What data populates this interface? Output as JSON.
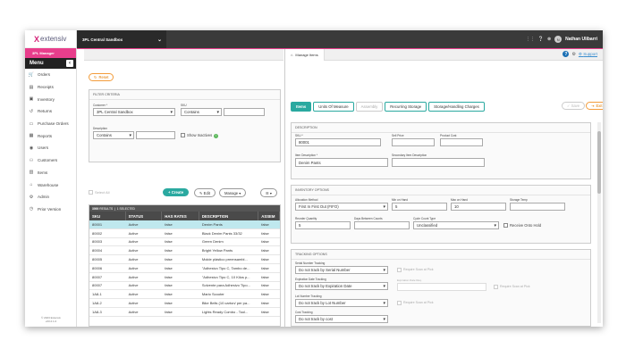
{
  "app": {
    "logo_text": "extensiv",
    "logo_mark": "X",
    "role": "3PL Manager",
    "env": "3PL Central Sandbox",
    "user": "Nathan Ulibarri",
    "user_initials": "N",
    "support": "Support"
  },
  "colors": {
    "accent": "#e83e8c",
    "teal": "#2aa9a0",
    "orange": "#f39c3a"
  },
  "menu": {
    "title": "Menu",
    "items": [
      {
        "label": "Orders",
        "icon": "cart-icon"
      },
      {
        "label": "Receipts",
        "icon": "receipt-icon"
      },
      {
        "label": "Inventory",
        "icon": "box-icon"
      },
      {
        "label": "Returns",
        "icon": "return-icon"
      },
      {
        "label": "Purchase Orders",
        "icon": "doc-icon"
      },
      {
        "label": "Reports",
        "icon": "report-icon"
      },
      {
        "label": "Users",
        "icon": "user-icon"
      },
      {
        "label": "Customers",
        "icon": "customers-icon"
      },
      {
        "label": "Items",
        "icon": "items-icon"
      },
      {
        "label": "Warehouse",
        "icon": "warehouse-icon"
      },
      {
        "label": "Admin",
        "icon": "admin-icon"
      },
      {
        "label": "Prior Version",
        "icon": "history-icon"
      }
    ],
    "copyright_1": "© 2023 Extensiv",
    "copyright_2": "v23.2.1.0"
  },
  "tab": {
    "label": "Manage Items"
  },
  "left": {
    "reset": "Reset",
    "filter_title": "FILTER CRITERIA",
    "customer_label": "Customer *",
    "customer_value": "3PL Central Sandbox",
    "sku_label": "SKU",
    "sku_op": "Contains",
    "desc_label": "Description",
    "desc_op": "Contains",
    "show_inactives": "Show Inactives",
    "select_all": "Select All",
    "create": "+ Create",
    "edit": "✎ Edit",
    "manage": "Manage ▾",
    "grid_status_count": "3000",
    "grid_status_results": "RESULTS",
    "grid_status_selected": "1 SELECTED",
    "columns": [
      "SKU",
      "STATUS",
      "HAS RATES",
      "DESCRIPTION",
      "ASSEM"
    ],
    "rows": [
      [
        "80001",
        "Active",
        "false",
        "Denim Pants",
        "false"
      ],
      [
        "80002",
        "Active",
        "false",
        "Black Denim Pants 33/32",
        "false"
      ],
      [
        "80003",
        "Active",
        "false",
        "Green Denim",
        "false"
      ],
      [
        "80004",
        "Active",
        "false",
        "Bright Yellow Pants",
        "false"
      ],
      [
        "80005",
        "Active",
        "false",
        "Molde plástico preensambl...",
        "false"
      ],
      [
        "80006",
        "Active",
        "false",
        "\"Adhesivo Tipo C, Tambo de...",
        "false"
      ],
      [
        "80007",
        "Active",
        "false",
        "\"Adhesivo Tipo C, 10 Kilos p...",
        "false"
      ],
      [
        "80007",
        "Active",
        "false",
        "Solvente para Adhesivo Tipo...",
        "false"
      ],
      [
        "1A8-1",
        "Active",
        "false",
        "Mario Scooter",
        "false"
      ],
      [
        "1A8-2",
        "Active",
        "false",
        "Bike Bells (10 carton/ per pa...",
        "false"
      ],
      [
        "1A8-3",
        "Active",
        "false",
        "Lights Ready Combo - Tool...",
        "false"
      ]
    ]
  },
  "right": {
    "tabs": [
      "Items",
      "Units Of Measure",
      "Assembly",
      "Recurring Storage",
      "Storage/Handling Charges"
    ],
    "save": "Save",
    "exit": "Exit",
    "desc_section": "DESCRIPTION",
    "sku_label": "SKU *",
    "sku_value": "80001",
    "sell_price_label": "Sell Price",
    "product_cost_label": "Product Cost",
    "item_desc_label": "Item Description *",
    "item_desc_value": "Denim Pants",
    "sec_desc_label": "Secondary Item Description",
    "inv_section": "INVENTORY OPTIONS",
    "alloc_label": "Allocation Method",
    "alloc_value": "First In First Out (FIFO)",
    "min_hand_label": "Min on Hand",
    "min_hand_value": "5",
    "max_hand_label": "Max on Hand",
    "max_hand_value": "10",
    "storage_temp_label": "Storage Temp",
    "reorder_label": "Reorder Quantity",
    "reorder_value": "5",
    "days_label": "Days Between Counts",
    "cycle_label": "Cycle Count Type",
    "cycle_value": "Unclassified",
    "receive_hold": "Receive Onto Hold",
    "track_section": "TRACKING OPTIONS",
    "serial_label": "Serial Number Tracking",
    "serial_value": "Do not track by Serial Number",
    "req_scan": "Require Scan at Pick",
    "exp_label": "Expiration Date Tracking",
    "exp_value": "Do not track by Expiration Date",
    "exp_req_label": "Expiration Date Req.",
    "lot_label": "Lot Number Tracking",
    "lot_value": "Do not track by Lot Number",
    "cost_label": "Cost Tracking",
    "cost_value": "Do not track by cost"
  }
}
